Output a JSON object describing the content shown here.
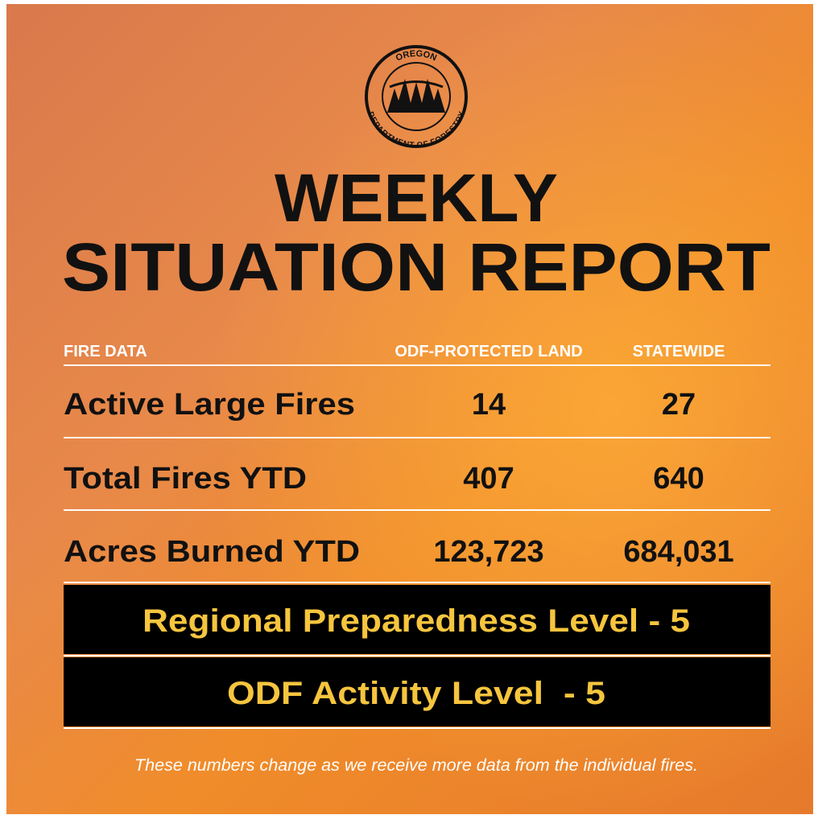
{
  "logo": {
    "top": "OREGON",
    "bottom": "DEPARTMENT OF FORESTRY"
  },
  "title": [
    "WEEKLY",
    "SITUATION REPORT"
  ],
  "table": {
    "header": [
      "FIRE DATA",
      "ODF-PROTECTED LAND",
      "STATEWIDE"
    ],
    "rows": [
      [
        "Active Large Fires",
        "14",
        "27"
      ],
      [
        "Total Fires YTD",
        "407",
        "640"
      ],
      [
        "Acres Burned YTD",
        "123,723",
        "684,031"
      ]
    ]
  },
  "banners": [
    "Regional Preparedness Level - 5",
    "ODF Activity Level  - 5"
  ],
  "footnote": "These numbers change as we receive more data from the individual fires."
}
